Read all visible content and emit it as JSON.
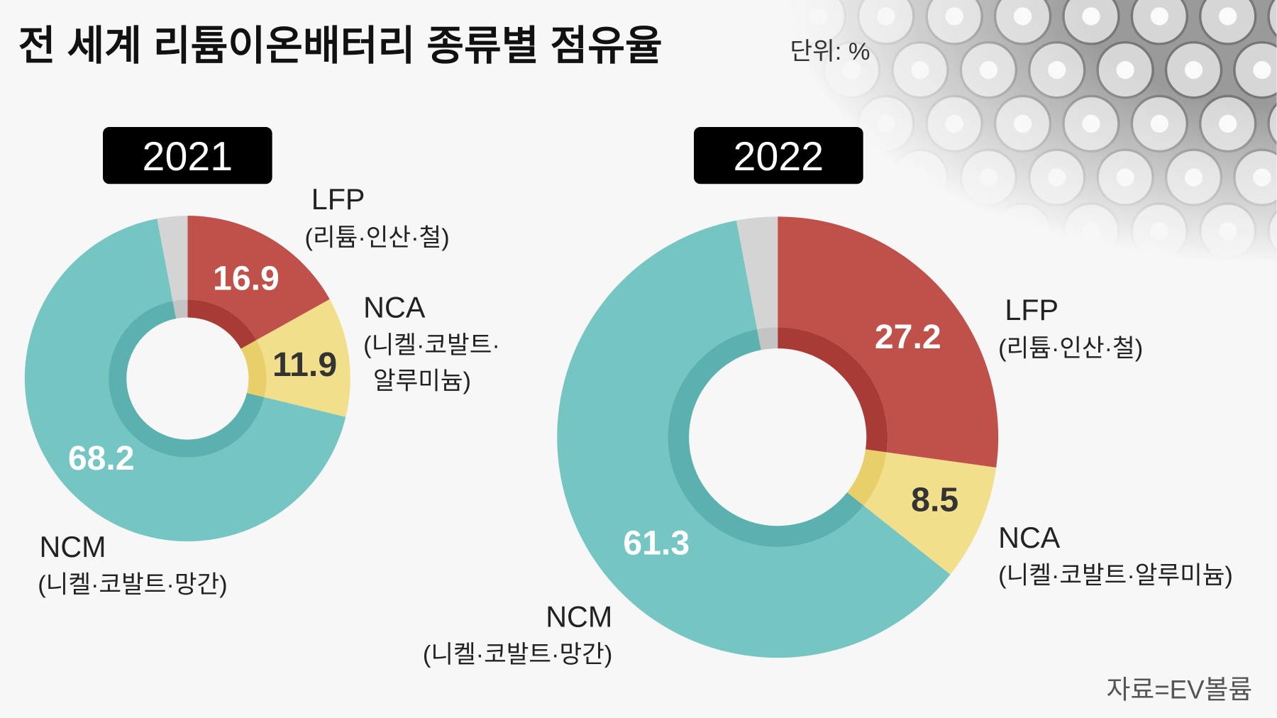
{
  "title": "전 세계 리튬이온배터리 종류별 점유율",
  "unit": "단위: %",
  "source": "자료=EV볼륨",
  "colors": {
    "LFP": "#c0514a",
    "NCA": "#f1df8c",
    "NCM": "#75c5c3",
    "other": "#d4d4d4"
  },
  "chart_data": [
    {
      "type": "pie",
      "title": "2021",
      "categories": [
        "LFP",
        "NCA",
        "NCM",
        "other"
      ],
      "values": [
        16.9,
        11.9,
        68.2,
        3.0
      ],
      "labels": [
        {
          "name": "LFP",
          "desc": "(리튬·인산·철)"
        },
        {
          "name": "NCA",
          "desc1": "(니켈·코발트·",
          "desc2": "알루미늄)"
        },
        {
          "name": "NCM",
          "desc": "(니켈·코발트·망간)"
        }
      ],
      "value_labels": [
        "16.9",
        "11.9",
        "68.2"
      ]
    },
    {
      "type": "pie",
      "title": "2022",
      "categories": [
        "LFP",
        "NCA",
        "NCM",
        "other"
      ],
      "values": [
        27.2,
        8.5,
        61.3,
        3.0
      ],
      "labels": [
        {
          "name": "LFP",
          "desc": "(리튬·인산·철)"
        },
        {
          "name": "NCA",
          "desc": "(니켈·코발트·알루미늄)"
        },
        {
          "name": "NCM",
          "desc": "(니켈·코발트·망간)"
        }
      ],
      "value_labels": [
        "27.2",
        "8.5",
        "61.3"
      ]
    }
  ]
}
